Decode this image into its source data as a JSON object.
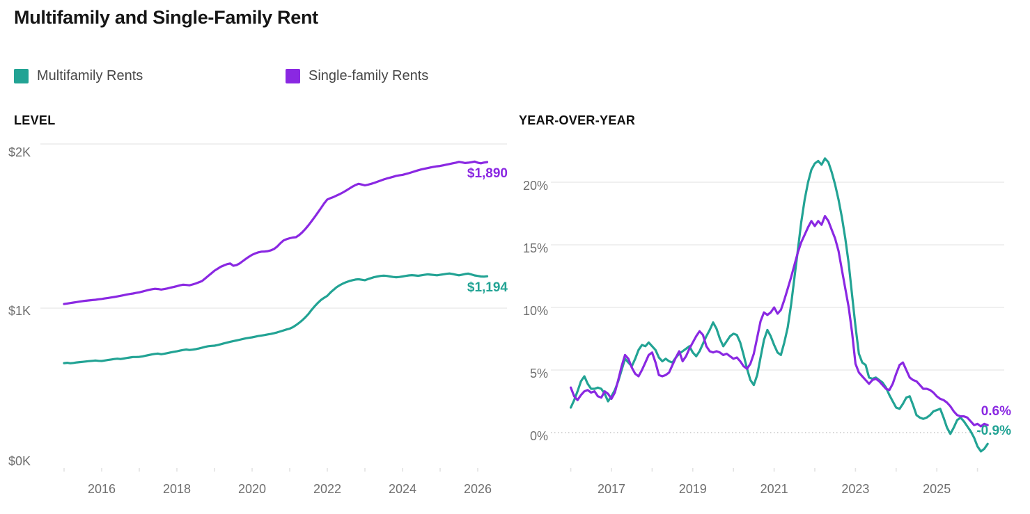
{
  "title": "Multifamily and Single-Family Rent",
  "legend": {
    "items": [
      {
        "label": "Multifamily Rents",
        "color": "#22A394"
      },
      {
        "label": "Single-family Rents",
        "color": "#8A28E2"
      }
    ]
  },
  "colors": {
    "multifamily": "#22A394",
    "single_family": "#8A28E2",
    "gridline": "#ebebeb",
    "zero_line": "#c6c6c6",
    "axis_text": "#6F6F6F"
  },
  "chart_data": [
    {
      "type": "line",
      "title": "LEVEL",
      "x_ticks": [
        {
          "label": "2016",
          "value": 2016
        },
        {
          "label": "2018",
          "value": 2018
        },
        {
          "label": "2020",
          "value": 2020
        },
        {
          "label": "2022",
          "value": 2022
        },
        {
          "label": "2024",
          "value": 2024
        },
        {
          "label": "2026",
          "value": 2026
        }
      ],
      "y_ticks": [
        {
          "label": "$2K",
          "value": 2000,
          "line": "solid"
        },
        {
          "label": "$1K",
          "value": 1000,
          "line": "solid"
        },
        {
          "label": "$0K",
          "value": 0,
          "line": "none"
        }
      ],
      "x_range_years": [
        2015,
        2026.25
      ],
      "y_range": [
        0,
        2100
      ],
      "series": [
        {
          "name": "Multifamily Rents",
          "color": "#22A394",
          "x0": 2015,
          "dx_years": 0.0833333,
          "end_label": "$1,194",
          "values": [
            665,
            667,
            664,
            666,
            669,
            671,
            673,
            675,
            677,
            679,
            681,
            679,
            678,
            681,
            684,
            687,
            690,
            692,
            690,
            693,
            696,
            699,
            702,
            702,
            703,
            706,
            710,
            714,
            718,
            721,
            723,
            719,
            722,
            726,
            730,
            734,
            737,
            741,
            745,
            748,
            745,
            747,
            750,
            754,
            759,
            764,
            768,
            770,
            771,
            775,
            780,
            785,
            790,
            795,
            799,
            803,
            807,
            812,
            816,
            819,
            822,
            826,
            830,
            833,
            836,
            840,
            843,
            847,
            852,
            858,
            864,
            870,
            875,
            884,
            896,
            910,
            926,
            944,
            965,
            990,
            1012,
            1032,
            1050,
            1063,
            1075,
            1095,
            1112,
            1128,
            1140,
            1150,
            1158,
            1165,
            1170,
            1174,
            1176,
            1173,
            1170,
            1177,
            1183,
            1189,
            1193,
            1196,
            1198,
            1196,
            1193,
            1190,
            1188,
            1190,
            1193,
            1196,
            1199,
            1201,
            1199,
            1197,
            1200,
            1203,
            1206,
            1204,
            1202,
            1200,
            1203,
            1206,
            1209,
            1211,
            1208,
            1204,
            1200,
            1204,
            1208,
            1210,
            1205,
            1199,
            1196,
            1193,
            1192,
            1194
          ]
        },
        {
          "name": "Single-family Rents",
          "color": "#8A28E2",
          "x0": 2015,
          "dx_years": 0.0833333,
          "end_label": "$1,890",
          "values": [
            1025,
            1028,
            1031,
            1034,
            1037,
            1040,
            1043,
            1045,
            1047,
            1049,
            1051,
            1054,
            1056,
            1059,
            1062,
            1065,
            1068,
            1071,
            1075,
            1079,
            1083,
            1086,
            1089,
            1093,
            1096,
            1101,
            1106,
            1111,
            1115,
            1118,
            1116,
            1113,
            1116,
            1120,
            1125,
            1129,
            1134,
            1139,
            1143,
            1141,
            1139,
            1144,
            1150,
            1157,
            1165,
            1180,
            1196,
            1212,
            1228,
            1240,
            1252,
            1260,
            1268,
            1272,
            1258,
            1262,
            1272,
            1286,
            1300,
            1313,
            1325,
            1333,
            1340,
            1344,
            1345,
            1347,
            1352,
            1360,
            1375,
            1395,
            1412,
            1420,
            1426,
            1430,
            1432,
            1445,
            1462,
            1482,
            1505,
            1530,
            1556,
            1583,
            1610,
            1638,
            1662,
            1670,
            1677,
            1686,
            1695,
            1705,
            1716,
            1728,
            1740,
            1750,
            1757,
            1753,
            1748,
            1752,
            1757,
            1763,
            1770,
            1777,
            1784,
            1790,
            1795,
            1800,
            1806,
            1809,
            1812,
            1817,
            1822,
            1828,
            1834,
            1840,
            1845,
            1849,
            1853,
            1857,
            1861,
            1864,
            1866,
            1870,
            1874,
            1878,
            1882,
            1886,
            1891,
            1888,
            1884,
            1886,
            1889,
            1893,
            1886,
            1882,
            1887,
            1890
          ]
        }
      ]
    },
    {
      "type": "line",
      "title": "YEAR-OVER-YEAR",
      "x_ticks": [
        {
          "label": "2017",
          "value": 2017
        },
        {
          "label": "2019",
          "value": 2019
        },
        {
          "label": "2021",
          "value": 2021
        },
        {
          "label": "2023",
          "value": 2023
        },
        {
          "label": "2025",
          "value": 2025
        }
      ],
      "y_ticks": [
        {
          "label": "20%",
          "value": 20,
          "line": "solid"
        },
        {
          "label": "15%",
          "value": 15,
          "line": "solid"
        },
        {
          "label": "10%",
          "value": 10,
          "line": "solid"
        },
        {
          "label": "5%",
          "value": 5,
          "line": "solid"
        },
        {
          "label": "0%",
          "value": 0,
          "line": "dotted"
        }
      ],
      "x_range_years": [
        2016,
        2026.25
      ],
      "y_range": [
        -2,
        22.5
      ],
      "series": [
        {
          "name": "Multifamily Rents",
          "color": "#22A394",
          "x0": 2016,
          "dx_years": 0.0833333,
          "end_label": "-0.9%",
          "values": [
            2.0,
            2.6,
            3.3,
            4.1,
            4.5,
            3.9,
            3.5,
            3.5,
            3.6,
            3.5,
            3.1,
            2.5,
            2.9,
            3.4,
            4.1,
            5.0,
            5.9,
            5.6,
            5.3,
            5.9,
            6.6,
            7.0,
            6.9,
            7.2,
            6.9,
            6.6,
            6.0,
            5.7,
            5.9,
            5.7,
            5.6,
            6.0,
            6.3,
            6.5,
            6.7,
            6.9,
            6.4,
            6.1,
            6.5,
            7.1,
            7.7,
            8.2,
            8.8,
            8.3,
            7.5,
            6.9,
            7.3,
            7.7,
            7.9,
            7.8,
            7.2,
            6.2,
            5.1,
            4.2,
            3.8,
            4.6,
            6.0,
            7.4,
            8.2,
            7.7,
            7.0,
            6.4,
            6.2,
            7.2,
            8.4,
            10.2,
            12.4,
            14.6,
            16.8,
            18.6,
            20.0,
            21.0,
            21.5,
            21.7,
            21.4,
            21.9,
            21.6,
            20.8,
            19.8,
            18.6,
            17.2,
            15.5,
            13.5,
            11.0,
            8.5,
            6.3,
            5.6,
            5.4,
            4.4,
            4.3,
            4.4,
            4.2,
            4.0,
            3.6,
            3.0,
            2.5,
            2.0,
            1.9,
            2.3,
            2.8,
            2.9,
            2.2,
            1.4,
            1.2,
            1.1,
            1.2,
            1.4,
            1.7,
            1.8,
            1.9,
            1.2,
            0.4,
            -0.1,
            0.4,
            1.0,
            1.2,
            0.9,
            0.5,
            0.1,
            -0.4,
            -1.1,
            -1.5,
            -1.3,
            -0.9
          ]
        },
        {
          "name": "Single-family Rents",
          "color": "#8A28E2",
          "x0": 2016,
          "dx_years": 0.0833333,
          "end_label": "0.6%",
          "values": [
            3.6,
            2.9,
            2.6,
            3.0,
            3.3,
            3.4,
            3.2,
            3.3,
            2.9,
            2.8,
            3.3,
            3.1,
            2.7,
            3.2,
            4.2,
            5.3,
            6.2,
            5.9,
            5.2,
            4.7,
            4.5,
            5.0,
            5.6,
            6.2,
            6.4,
            5.6,
            4.6,
            4.5,
            4.6,
            4.8,
            5.4,
            6.0,
            6.5,
            5.7,
            6.1,
            6.7,
            7.2,
            7.7,
            8.1,
            7.8,
            6.9,
            6.5,
            6.4,
            6.5,
            6.4,
            6.2,
            6.3,
            6.1,
            5.9,
            6.0,
            5.7,
            5.3,
            5.1,
            5.5,
            6.3,
            7.6,
            8.9,
            9.6,
            9.4,
            9.6,
            10.0,
            9.5,
            9.8,
            10.6,
            11.5,
            12.4,
            13.4,
            14.4,
            15.2,
            15.8,
            16.4,
            16.9,
            16.5,
            16.9,
            16.6,
            17.3,
            16.9,
            16.2,
            15.5,
            14.5,
            13.0,
            11.5,
            10.0,
            8.0,
            5.5,
            4.8,
            4.5,
            4.2,
            3.9,
            4.2,
            4.3,
            4.1,
            3.8,
            3.5,
            3.4,
            3.9,
            4.7,
            5.4,
            5.6,
            5.0,
            4.4,
            4.2,
            4.1,
            3.8,
            3.5,
            3.5,
            3.4,
            3.2,
            2.9,
            2.7,
            2.6,
            2.4,
            2.1,
            1.7,
            1.4,
            1.3,
            1.3,
            1.2,
            0.9,
            0.6,
            0.7,
            0.5,
            0.7,
            0.6
          ]
        }
      ]
    }
  ]
}
